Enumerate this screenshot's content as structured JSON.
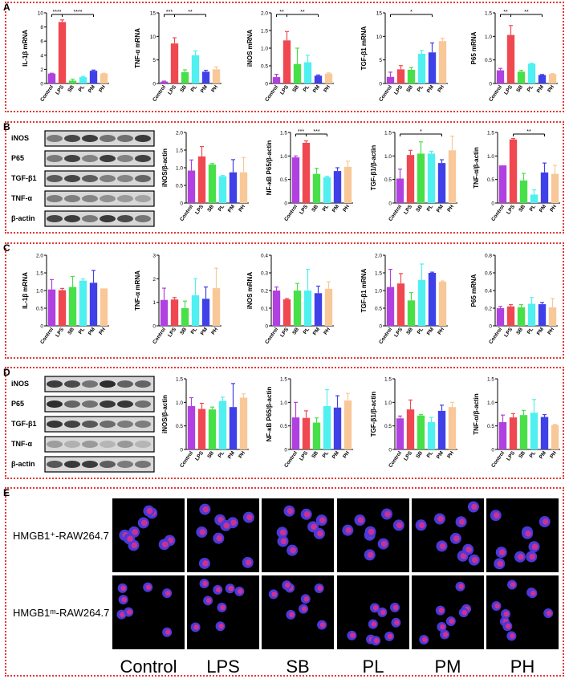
{
  "colors": [
    "#b040e0",
    "#f04850",
    "#48e048",
    "#50f0f0",
    "#4040e8",
    "#f8c898"
  ],
  "categories": [
    "Control",
    "LPS",
    "SB",
    "PL",
    "PM",
    "PH"
  ],
  "panel_labels": {
    "a": "A",
    "b": "B",
    "c": "C",
    "d": "D",
    "e": "E"
  },
  "blot_labels": [
    "iNOS",
    "P65",
    "TGF-β1",
    "TNF-α",
    "β-actin"
  ],
  "chart_data": [
    {
      "id": "A1",
      "type": "bar",
      "ylabel": "IL-1β mRNA",
      "yticks": [
        0,
        2,
        4,
        6,
        8,
        10
      ],
      "ylim": [
        0,
        10
      ],
      "values": [
        1.4,
        8.7,
        0.4,
        0.9,
        1.8,
        1.4
      ],
      "errors": [
        0.05,
        0.3,
        0.2,
        0.1,
        0.1,
        0.05
      ],
      "sig": [
        {
          "from": 0,
          "to": 1,
          "label": "****"
        },
        {
          "from": 1,
          "to": 4,
          "label": "****"
        }
      ]
    },
    {
      "id": "A2",
      "type": "bar",
      "ylabel": "TNF-α mRNA",
      "yticks": [
        0,
        5,
        10,
        15
      ],
      "ylim": [
        0,
        15
      ],
      "values": [
        0.4,
        8.5,
        2.4,
        6.0,
        2.5,
        3.0
      ],
      "errors": [
        0.1,
        1.2,
        0.5,
        0.9,
        0.3,
        0.5
      ],
      "sig": [
        {
          "from": 0,
          "to": 1,
          "label": "***"
        },
        {
          "from": 1,
          "to": 4,
          "label": "**"
        }
      ]
    },
    {
      "id": "A3",
      "type": "bar",
      "ylabel": "iNOS mRNA",
      "yticks": [
        0,
        0.5,
        1.0,
        1.5,
        2.0
      ],
      "ylim": [
        0,
        2.0
      ],
      "values": [
        0.18,
        1.22,
        0.55,
        0.6,
        0.22,
        0.28
      ],
      "errors": [
        0.08,
        0.25,
        0.45,
        0.2,
        0.02,
        0.02
      ],
      "sig": [
        {
          "from": 0,
          "to": 1,
          "label": "**"
        },
        {
          "from": 1,
          "to": 4,
          "label": "**"
        }
      ]
    },
    {
      "id": "A4",
      "type": "bar",
      "ylabel": "TGF-β1 mRNA",
      "yticks": [
        0,
        5,
        10,
        15
      ],
      "ylim": [
        0,
        15
      ],
      "values": [
        1.4,
        3.0,
        2.9,
        6.3,
        6.6,
        9.0
      ],
      "errors": [
        1.0,
        0.8,
        0.5,
        0.7,
        2.0,
        0.6
      ],
      "sig": [
        {
          "from": 0,
          "to": 4,
          "label": "*"
        }
      ]
    },
    {
      "id": "A5",
      "type": "bar",
      "ylabel": "P65 mRNA",
      "yticks": [
        0,
        0.5,
        1.0,
        1.5
      ],
      "ylim": [
        0,
        1.5
      ],
      "values": [
        0.28,
        1.03,
        0.25,
        0.42,
        0.18,
        0.2
      ],
      "errors": [
        0.04,
        0.2,
        0.03,
        0.01,
        0.01,
        0.01
      ],
      "sig": [
        {
          "from": 0,
          "to": 1,
          "label": "**"
        },
        {
          "from": 1,
          "to": 4,
          "label": "**"
        }
      ]
    },
    {
      "id": "B1",
      "type": "bar",
      "ylabel": "iNOS/β-actin",
      "yticks": [
        0,
        0.5,
        1.0,
        1.5,
        2.0
      ],
      "ylim": [
        0,
        2.0
      ],
      "values": [
        0.92,
        1.32,
        1.09,
        0.76,
        0.87,
        0.87
      ],
      "errors": [
        0.3,
        0.28,
        0.03,
        0.02,
        0.36,
        0.42
      ],
      "sig": []
    },
    {
      "id": "B2",
      "type": "bar",
      "ylabel": "NF-κB P65/β-actin",
      "yticks": [
        0,
        0.5,
        1.0,
        1.5
      ],
      "ylim": [
        0,
        1.5
      ],
      "values": [
        0.97,
        1.28,
        0.62,
        0.55,
        0.68,
        0.77
      ],
      "errors": [
        0.03,
        0.04,
        0.12,
        0.02,
        0.07,
        0.12
      ],
      "sig": [
        {
          "from": 0,
          "to": 1,
          "label": "***"
        },
        {
          "from": 1,
          "to": 3,
          "label": "***"
        }
      ]
    },
    {
      "id": "B3",
      "type": "bar",
      "ylabel": "TGF-β1/β-actin",
      "yticks": [
        0,
        0.5,
        1.0,
        1.5
      ],
      "ylim": [
        0,
        1.5
      ],
      "values": [
        0.52,
        1.02,
        1.05,
        1.05,
        0.85,
        1.12
      ],
      "errors": [
        0.2,
        0.1,
        0.25,
        0.05,
        0.07,
        0.3
      ],
      "sig": [
        {
          "from": 0,
          "to": 4,
          "label": "*"
        }
      ]
    },
    {
      "id": "B4",
      "type": "bar",
      "ylabel": "TNF-α/β-actin",
      "yticks": [
        0,
        0.5,
        1.0,
        1.5
      ],
      "ylim": [
        0,
        1.5
      ],
      "values": [
        0.8,
        1.35,
        0.48,
        0.18,
        0.65,
        0.62
      ],
      "errors": [
        0.0,
        0.02,
        0.15,
        0.1,
        0.2,
        0.18
      ],
      "sig": [
        {
          "from": 1,
          "to": 4,
          "label": "**"
        }
      ]
    },
    {
      "id": "C1",
      "type": "bar",
      "ylabel": "IL-1β mRNA",
      "yticks": [
        0,
        0.5,
        1.0,
        1.5,
        2.0
      ],
      "ylim": [
        0,
        2.0
      ],
      "values": [
        1.03,
        1.01,
        1.1,
        1.28,
        1.22,
        1.06
      ],
      "errors": [
        0.28,
        0.05,
        0.3,
        0.05,
        0.35,
        0.0
      ],
      "sig": []
    },
    {
      "id": "C2",
      "type": "bar",
      "ylabel": "TNF-α mRNA",
      "yticks": [
        0,
        1,
        2,
        3
      ],
      "ylim": [
        0,
        3
      ],
      "values": [
        1.1,
        1.12,
        0.75,
        1.3,
        1.15,
        1.6
      ],
      "errors": [
        0.5,
        0.08,
        0.3,
        0.7,
        0.5,
        0.85
      ],
      "sig": []
    },
    {
      "id": "C3",
      "type": "bar",
      "ylabel": "iNOS mRNA",
      "yticks": [
        0,
        0.1,
        0.2,
        0.3,
        0.4
      ],
      "ylim": [
        0,
        0.4
      ],
      "values": [
        0.2,
        0.15,
        0.2,
        0.2,
        0.185,
        0.21
      ],
      "errors": [
        0.02,
        0.005,
        0.04,
        0.12,
        0.04,
        0.04
      ],
      "sig": []
    },
    {
      "id": "C4",
      "type": "bar",
      "ylabel": "TGF-β1 mRNA",
      "yticks": [
        0,
        0.5,
        1.0,
        1.5,
        2.0
      ],
      "ylim": [
        0,
        2.0
      ],
      "values": [
        1.1,
        1.2,
        0.72,
        1.3,
        1.5,
        1.25
      ],
      "errors": [
        0.5,
        0.28,
        0.22,
        0.45,
        0.02,
        0.02
      ],
      "sig": []
    },
    {
      "id": "C5",
      "type": "bar",
      "ylabel": "P65 mRNA",
      "yticks": [
        0,
        0.2,
        0.4,
        0.6,
        0.8
      ],
      "ylim": [
        0,
        0.8
      ],
      "values": [
        0.2,
        0.22,
        0.21,
        0.25,
        0.245,
        0.21
      ],
      "errors": [
        0.02,
        0.02,
        0.03,
        0.07,
        0.02,
        0.1
      ],
      "sig": []
    },
    {
      "id": "D1",
      "type": "bar",
      "ylabel": "iNOS/β-actin",
      "yticks": [
        0,
        0.5,
        1.0,
        1.5
      ],
      "ylim": [
        0,
        1.5
      ],
      "values": [
        0.92,
        0.86,
        0.85,
        1.03,
        0.9,
        1.1
      ],
      "errors": [
        0.18,
        0.12,
        0.05,
        0.08,
        0.5,
        0.08
      ],
      "sig": []
    },
    {
      "id": "D2",
      "type": "bar",
      "ylabel": "NF-κB P65/β-actin",
      "yticks": [
        0,
        0.5,
        1.0,
        1.5
      ],
      "ylim": [
        0,
        1.5
      ],
      "values": [
        0.68,
        0.67,
        0.57,
        0.92,
        0.89,
        1.04
      ],
      "errors": [
        0.32,
        0.15,
        0.1,
        0.35,
        0.25,
        0.15
      ],
      "sig": []
    },
    {
      "id": "D3",
      "type": "bar",
      "ylabel": "TGF-β1/β-actin",
      "yticks": [
        0,
        0.5,
        1.0,
        1.5
      ],
      "ylim": [
        0,
        1.5
      ],
      "values": [
        0.66,
        0.85,
        0.72,
        0.58,
        0.82,
        0.9
      ],
      "errors": [
        0.05,
        0.2,
        0.02,
        0.1,
        0.12,
        0.1
      ],
      "sig": []
    },
    {
      "id": "D4",
      "type": "bar",
      "ylabel": "TNF-α/β-actin",
      "yticks": [
        0,
        0.5,
        1.0,
        1.5
      ],
      "ylim": [
        0,
        1.5
      ],
      "values": [
        0.58,
        0.68,
        0.73,
        0.78,
        0.69,
        0.52
      ],
      "errors": [
        0.15,
        0.08,
        0.1,
        0.28,
        0.05,
        0.01
      ],
      "sig": []
    }
  ],
  "panel_e": {
    "row_labels": [
      "HMGB1⁺-RAW264.7",
      "HMGB1ᵐ-RAW264.7"
    ],
    "col_labels": [
      "Control",
      "LPS",
      "SB",
      "PL",
      "PM",
      "PH"
    ]
  }
}
